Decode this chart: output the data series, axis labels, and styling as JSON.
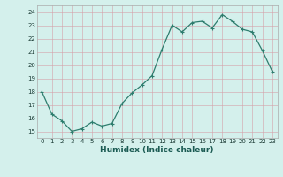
{
  "x": [
    0,
    1,
    2,
    3,
    4,
    5,
    6,
    7,
    8,
    9,
    10,
    11,
    12,
    13,
    14,
    15,
    16,
    17,
    18,
    19,
    20,
    21,
    22,
    23
  ],
  "y": [
    18,
    16.3,
    15.8,
    15,
    15.2,
    15.7,
    15.4,
    15.6,
    17.1,
    17.9,
    18.5,
    19.2,
    21.2,
    23.0,
    22.5,
    23.2,
    23.3,
    22.8,
    23.8,
    23.3,
    22.7,
    22.5,
    21.1,
    19.5
  ],
  "line_color": "#2e7d6e",
  "marker": "+",
  "marker_size": 3,
  "marker_lw": 0.8,
  "bg_color": "#d4f0ec",
  "grid_color_minor": "#d4a0a8",
  "grid_color_major": "#d4a0a8",
  "xlabel": "Humidex (Indice chaleur)",
  "ylabel_ticks": [
    15,
    16,
    17,
    18,
    19,
    20,
    21,
    22,
    23,
    24
  ],
  "xlim": [
    -0.5,
    23.5
  ],
  "ylim": [
    14.5,
    24.5
  ],
  "xtick_labels": [
    "0",
    "1",
    "2",
    "3",
    "4",
    "5",
    "6",
    "7",
    "8",
    "9",
    "10",
    "11",
    "12",
    "13",
    "14",
    "15",
    "16",
    "17",
    "18",
    "19",
    "20",
    "21",
    "22",
    "23"
  ],
  "tick_fontsize": 5,
  "xlabel_fontsize": 6.5,
  "line_width": 0.9
}
